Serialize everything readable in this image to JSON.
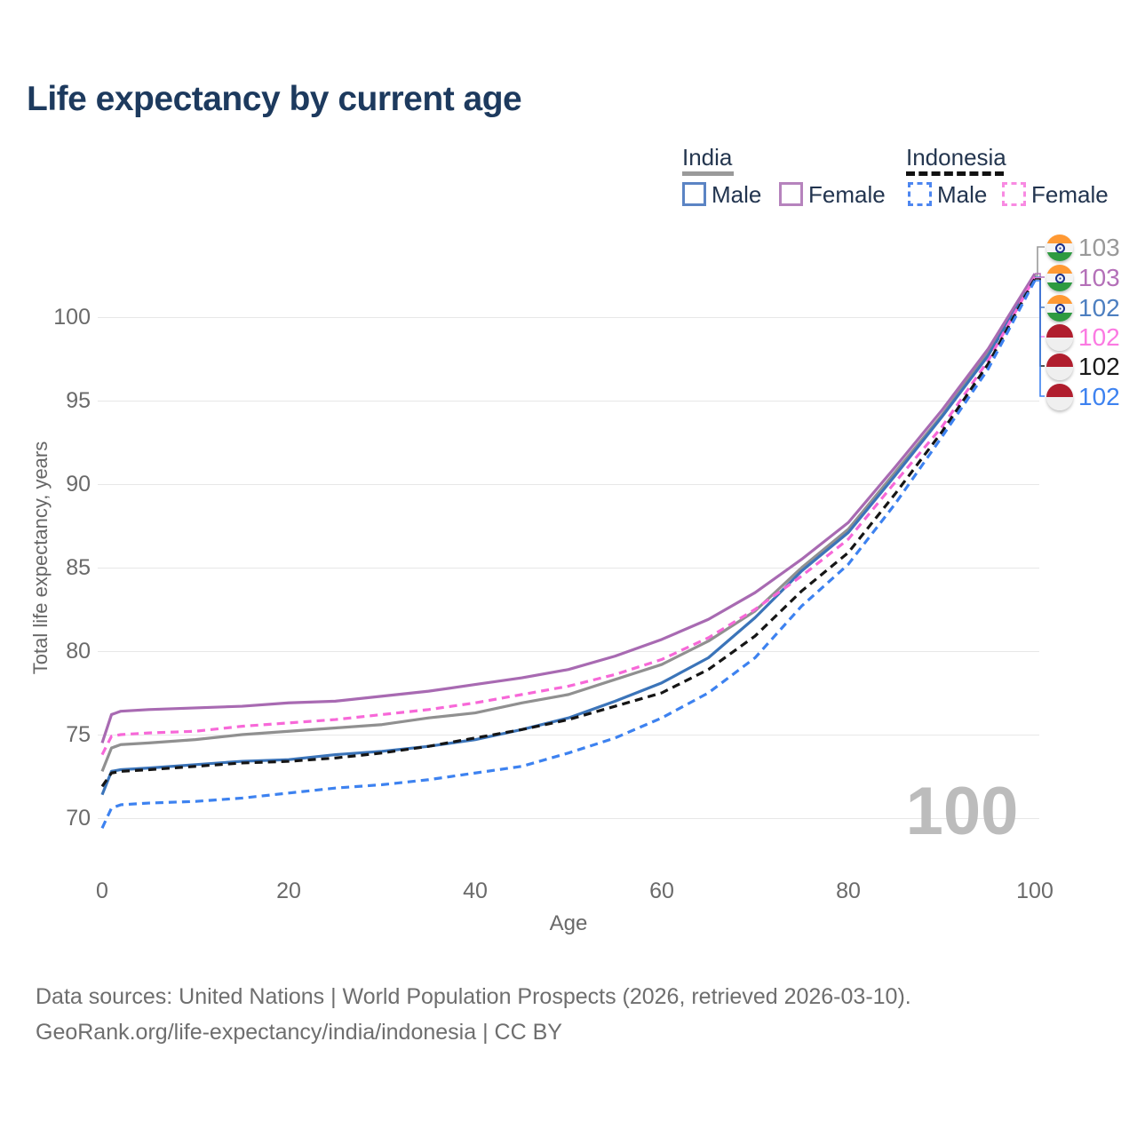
{
  "title": "Life expectancy by current age",
  "legend": {
    "groups": [
      {
        "label": "India",
        "style": "solid",
        "items": [
          {
            "label": "Male",
            "color": "#5b84c4"
          },
          {
            "label": "Female",
            "color": "#b683bd"
          }
        ]
      },
      {
        "label": "Indonesia",
        "style": "dashed",
        "items": [
          {
            "label": "Male",
            "color": "#4d86f0"
          },
          {
            "label": "Female",
            "color": "#f88ae2"
          }
        ]
      }
    ]
  },
  "chart_data": {
    "type": "line",
    "title": "Life expectancy by current age",
    "xlabel": "Age",
    "ylabel": "Total life expectancy, years",
    "xlim": [
      0,
      100
    ],
    "ylim": [
      69,
      103.5
    ],
    "xticks": [
      0,
      20,
      40,
      60,
      80,
      100
    ],
    "yticks": [
      70,
      75,
      80,
      85,
      90,
      95,
      100
    ],
    "grid": true,
    "legend_position": "top-right",
    "x": [
      0,
      1,
      2,
      5,
      10,
      15,
      20,
      25,
      30,
      35,
      40,
      45,
      50,
      55,
      60,
      65,
      70,
      75,
      80,
      85,
      90,
      95,
      100
    ],
    "series": [
      {
        "name": "India Total",
        "color": "#909090",
        "dash": "solid",
        "end_label": "103",
        "values": [
          72.8,
          74.2,
          74.4,
          74.5,
          74.7,
          75.0,
          75.2,
          75.4,
          75.6,
          76.0,
          76.3,
          76.9,
          77.4,
          78.3,
          79.2,
          80.6,
          82.4,
          85.0,
          87.3,
          90.7,
          94.1,
          97.9,
          102.5
        ]
      },
      {
        "name": "India Male",
        "color": "#3b74b9",
        "dash": "solid",
        "end_label": "102",
        "values": [
          71.4,
          72.8,
          72.9,
          73.0,
          73.2,
          73.4,
          73.5,
          73.8,
          74.0,
          74.3,
          74.7,
          75.3,
          76.0,
          77.0,
          78.1,
          79.6,
          82.0,
          84.8,
          87.1,
          90.5,
          94.0,
          97.7,
          102.4
        ]
      },
      {
        "name": "India Female",
        "color": "#a86ab2",
        "dash": "solid",
        "end_label": "103",
        "values": [
          74.5,
          76.2,
          76.4,
          76.5,
          76.6,
          76.7,
          76.9,
          77.0,
          77.3,
          77.6,
          78.0,
          78.4,
          78.9,
          79.7,
          80.7,
          81.9,
          83.5,
          85.5,
          87.7,
          91.0,
          94.4,
          98.1,
          102.6
        ]
      },
      {
        "name": "Indonesia Female",
        "color": "#f768d8",
        "dash": "dashed",
        "end_label": "102",
        "values": [
          73.8,
          74.9,
          75.0,
          75.1,
          75.2,
          75.5,
          75.7,
          75.9,
          76.2,
          76.5,
          76.9,
          77.4,
          77.9,
          78.6,
          79.5,
          80.8,
          82.5,
          84.5,
          86.7,
          90.1,
          93.4,
          97.4,
          102.4
        ]
      },
      {
        "name": "Indonesia Total",
        "color": "#151515",
        "dash": "dashed",
        "end_label": "102",
        "values": [
          71.9,
          72.7,
          72.8,
          72.9,
          73.1,
          73.3,
          73.4,
          73.6,
          73.9,
          74.3,
          74.8,
          75.3,
          75.9,
          76.7,
          77.5,
          78.9,
          80.9,
          83.6,
          85.9,
          89.4,
          93.1,
          97.2,
          102.3
        ]
      },
      {
        "name": "Indonesia Male",
        "color": "#3d82f0",
        "dash": "dashed",
        "end_label": "102",
        "values": [
          69.4,
          70.6,
          70.8,
          70.9,
          71.0,
          71.2,
          71.5,
          71.8,
          72.0,
          72.3,
          72.7,
          73.1,
          73.9,
          74.8,
          76.0,
          77.5,
          79.6,
          82.7,
          85.2,
          88.8,
          92.8,
          96.9,
          102.2
        ]
      }
    ]
  },
  "end_labels": [
    {
      "value": "103",
      "color": "#999999",
      "flag": "india",
      "series": "India Total"
    },
    {
      "value": "103",
      "color": "#b470b8",
      "flag": "india",
      "series": "India Female"
    },
    {
      "value": "102",
      "color": "#4d7fc0",
      "flag": "india",
      "series": "India Male"
    },
    {
      "value": "102",
      "color": "#fb7ae2",
      "flag": "indonesia",
      "series": "Indonesia Female"
    },
    {
      "value": "102",
      "color": "#1a1a1a",
      "flag": "indonesia",
      "series": "Indonesia Total"
    },
    {
      "value": "102",
      "color": "#3d82f0",
      "flag": "indonesia",
      "series": "Indonesia Male"
    }
  ],
  "watermark": "100",
  "footer": {
    "line1": "Data sources: United Nations | World Population Prospects (2026, retrieved 2026-03-10).",
    "line2": "GeoRank.org/life-expectancy/india/indonesia | CC BY"
  }
}
